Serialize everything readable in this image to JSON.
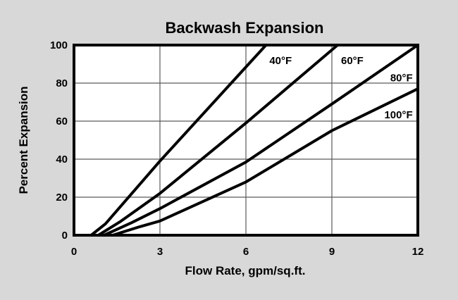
{
  "colors": {
    "page_background": "#d8d8d8",
    "plot_background": "#ffffff",
    "line": "#000000",
    "grid": "#5a5a5a",
    "border": "#000000",
    "text": "#000000"
  },
  "chart_data": {
    "type": "line",
    "title": "Backwash Expansion",
    "xlabel": "Flow Rate, gpm/sq.ft.",
    "ylabel": "Percent Expansion",
    "xlim": [
      0,
      12
    ],
    "ylim": [
      0,
      100
    ],
    "xticks": [
      0,
      3,
      6,
      9,
      12
    ],
    "yticks": [
      0,
      20,
      40,
      60,
      80,
      100
    ],
    "grid": true,
    "legend_position": "inline-labels",
    "series": [
      {
        "name": "40F",
        "label": "40°F",
        "points": [
          [
            0.6,
            0
          ],
          [
            1.1,
            6
          ],
          [
            3,
            39
          ],
          [
            6.7,
            100
          ]
        ],
        "label_pos": [
          6.82,
          90
        ],
        "label_anchor": "start"
      },
      {
        "name": "60F",
        "label": "60°F",
        "points": [
          [
            0.85,
            0
          ],
          [
            1.6,
            7
          ],
          [
            3,
            22
          ],
          [
            6,
            59
          ],
          [
            9.2,
            100
          ]
        ],
        "label_pos": [
          9.32,
          90
        ],
        "label_anchor": "start"
      },
      {
        "name": "80F",
        "label": "80°F",
        "points": [
          [
            1.05,
            0
          ],
          [
            2.0,
            6.5
          ],
          [
            3,
            14
          ],
          [
            6,
            38.5
          ],
          [
            9,
            69
          ],
          [
            12,
            100
          ]
        ],
        "label_pos": [
          11.82,
          81
        ],
        "label_anchor": "end"
      },
      {
        "name": "100F",
        "label": "100°F",
        "points": [
          [
            1.35,
            0
          ],
          [
            2.3,
            4.5
          ],
          [
            3,
            7.5
          ],
          [
            6,
            28
          ],
          [
            9,
            55
          ],
          [
            12,
            77
          ]
        ],
        "label_pos": [
          11.82,
          61.5
        ],
        "label_anchor": "end"
      }
    ]
  }
}
